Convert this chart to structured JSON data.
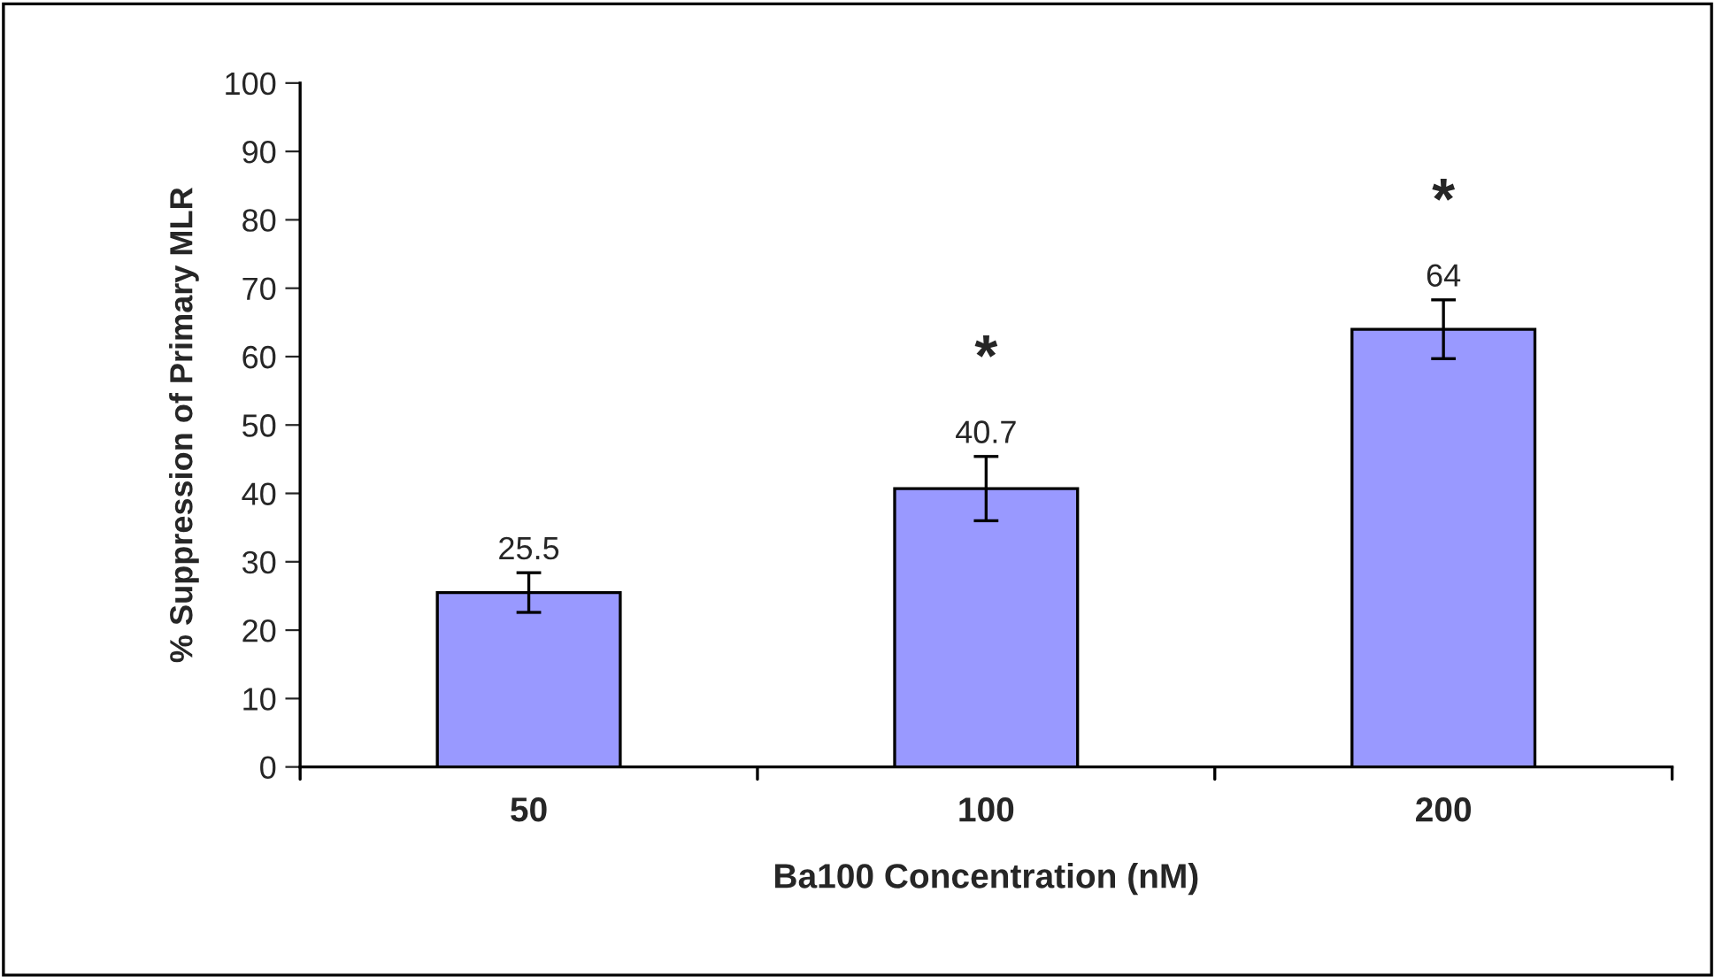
{
  "chart_data": {
    "type": "bar",
    "xlabel": "Ba100 Concentration (nM)",
    "ylabel": "% Suppression of Primary MLR",
    "categories": [
      "50",
      "100",
      "200"
    ],
    "series": [
      {
        "color": "#9999ff",
        "values": [
          25.5,
          40.7,
          64
        ],
        "errors": [
          2.9,
          4.7,
          4.3
        ]
      }
    ],
    "data_labels": true,
    "annotations": [
      "*",
      "*"
    ],
    "ylim": [
      0,
      100
    ],
    "yticks": [
      0,
      10,
      20,
      30,
      40,
      50,
      60,
      70,
      80,
      90,
      100
    ],
    "grid": false,
    "legend": false
  }
}
